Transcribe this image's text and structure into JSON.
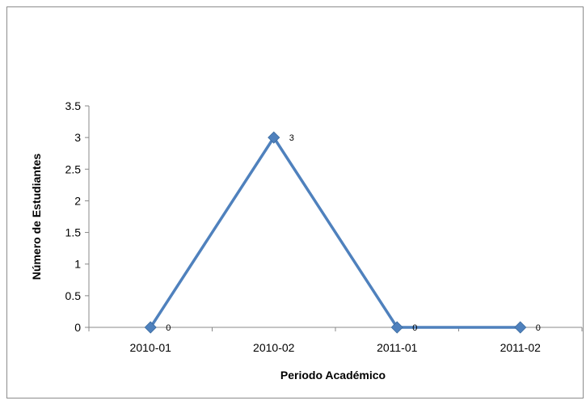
{
  "chart_data": {
    "type": "line",
    "categories": [
      "2010-01",
      "2010-02",
      "2011-01",
      "2011-02"
    ],
    "series": [
      {
        "values": [
          0,
          3,
          0,
          0
        ],
        "color": "#4f81bd"
      }
    ],
    "data_labels": [
      "0",
      "3",
      "0",
      "0"
    ],
    "xlabel": "Periodo Académico",
    "ylabel": "Número de Estudiantes",
    "ylim": [
      0,
      3.5
    ],
    "yticks": [
      "0",
      "0.5",
      "1",
      "1.5",
      "2",
      "2.5",
      "3",
      "3.5"
    ],
    "grid": false,
    "legend": "none"
  }
}
